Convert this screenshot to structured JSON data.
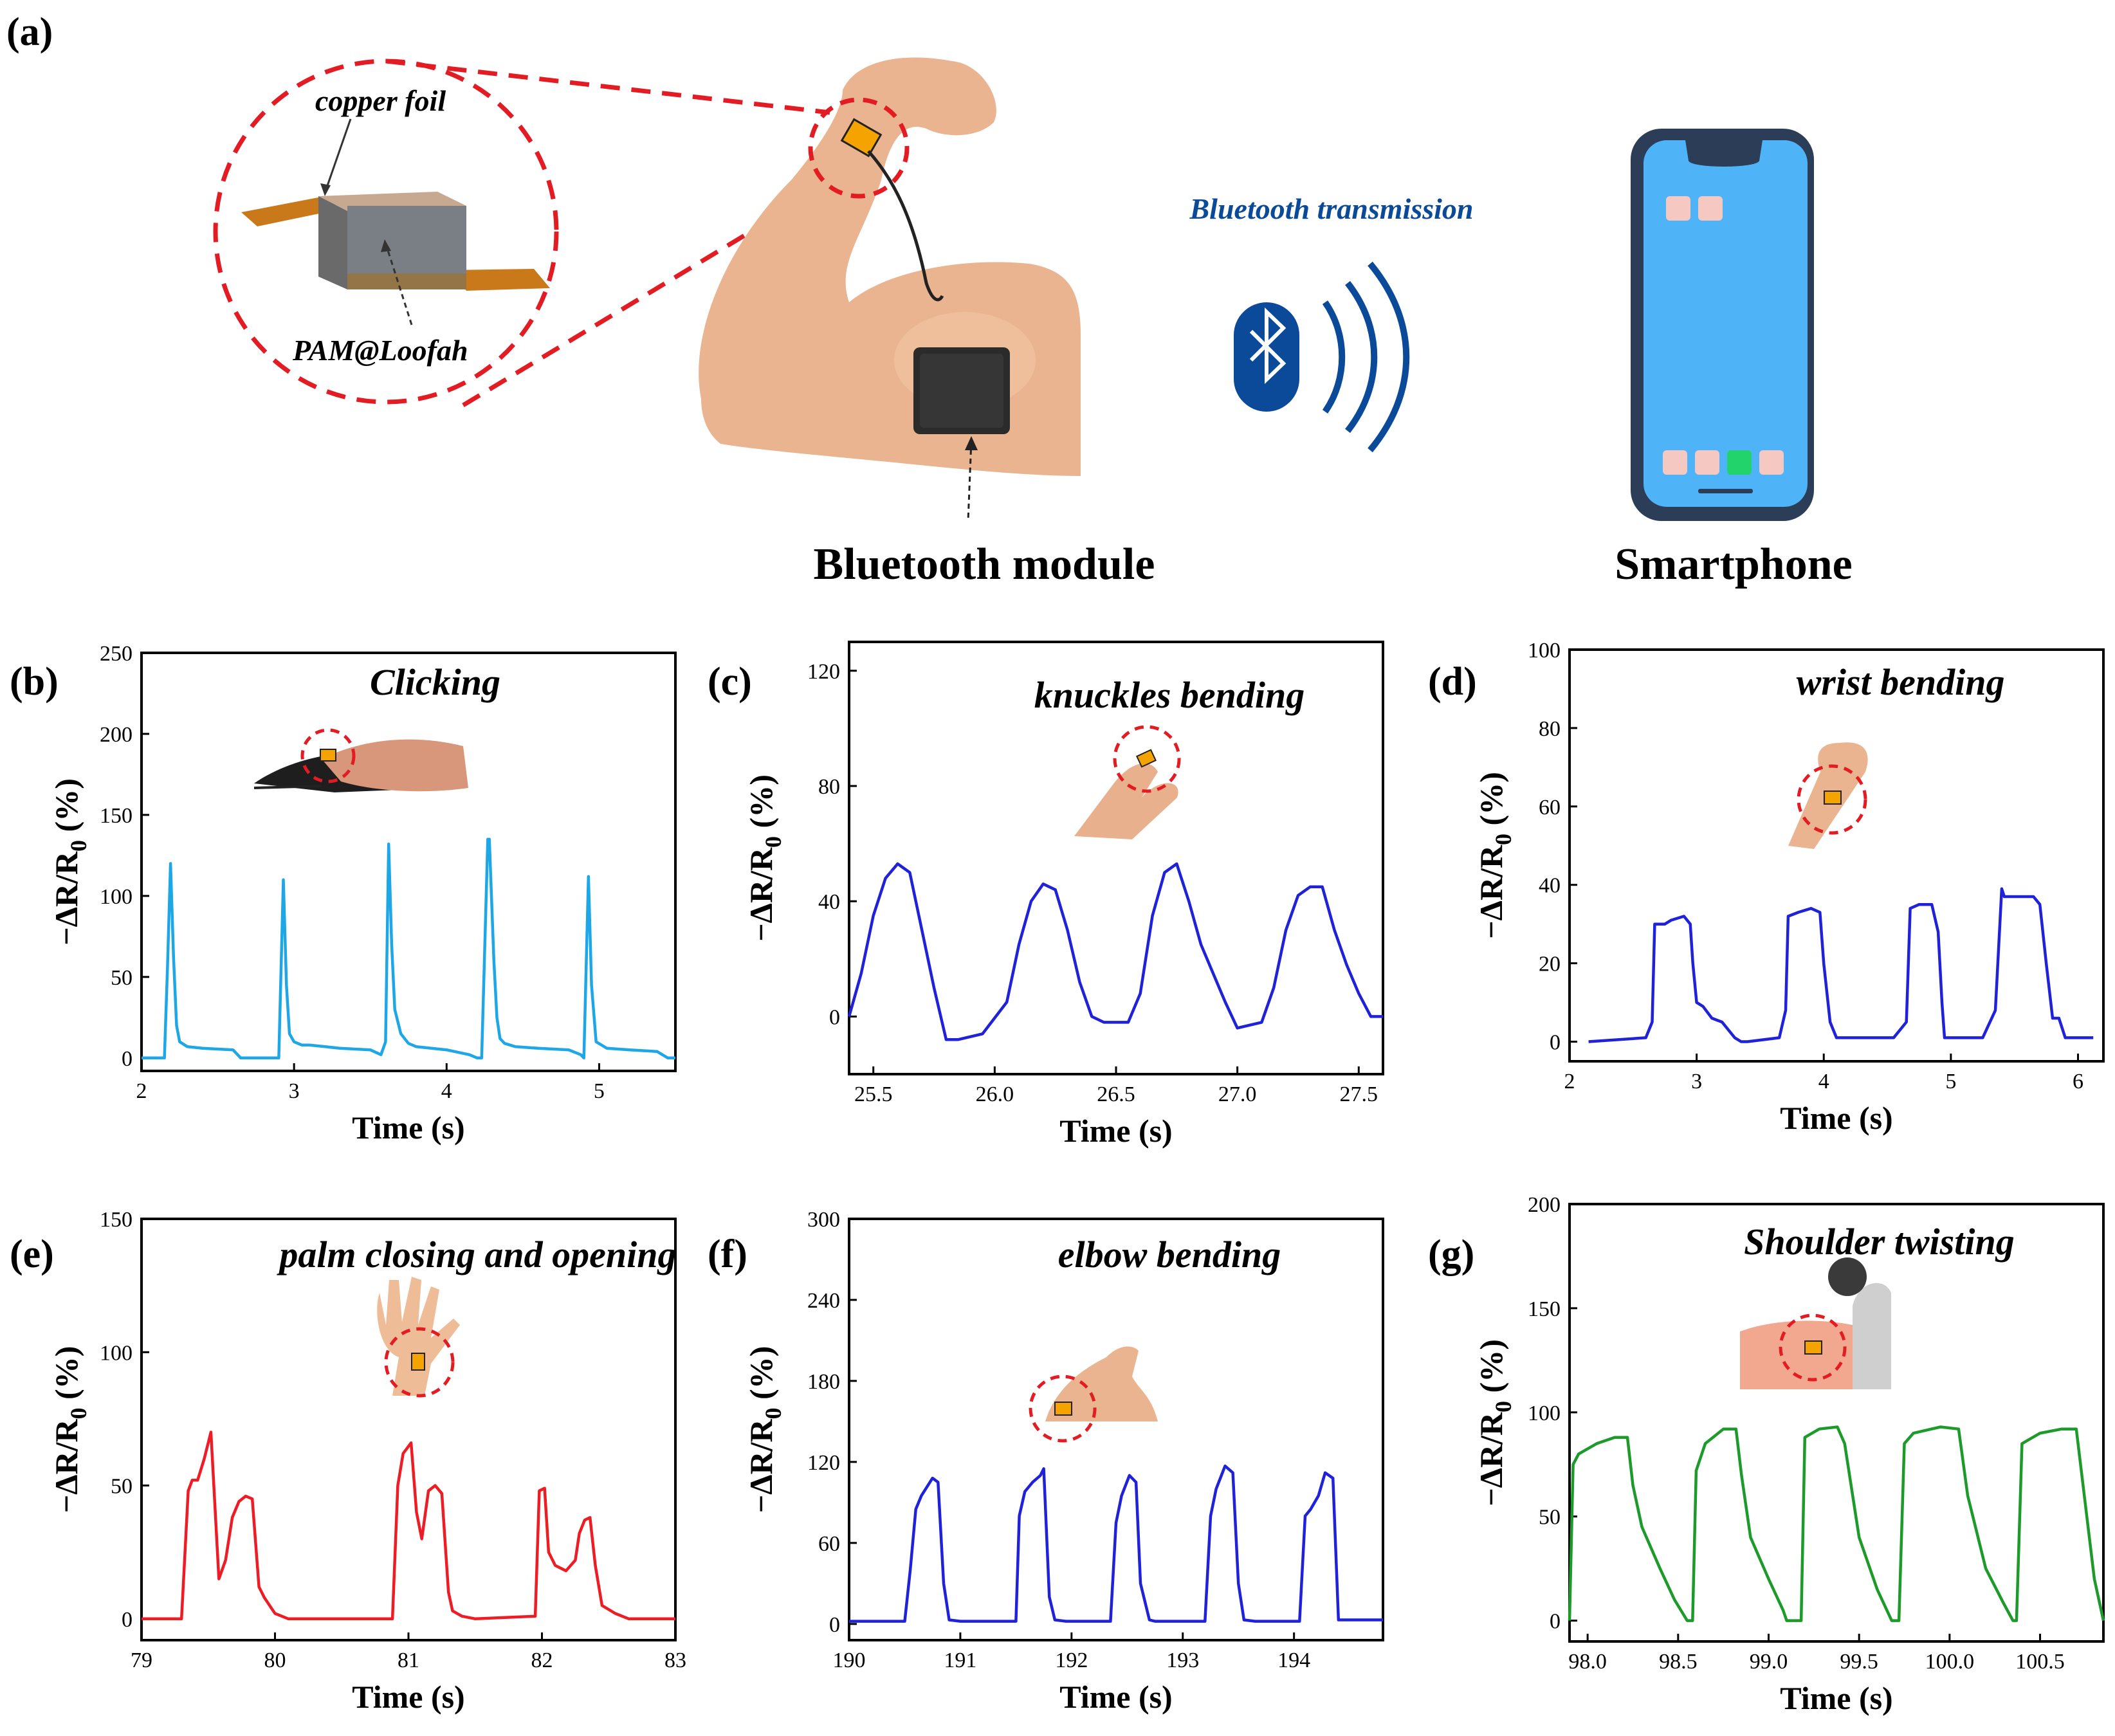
{
  "panel_a": {
    "letter": "(a)",
    "callout_top": "copper foil",
    "callout_bottom": "PAM@Loofah",
    "bluetooth_label": "Bluetooth transmission",
    "module_label": "Bluetooth module",
    "phone_label": "Smartphone"
  },
  "colors": {
    "cyan": "#1ea7e6",
    "blue": "#1f22d9",
    "red": "#ee1c24",
    "green": "#1c9a2a",
    "bluetooth": "#0b4a98",
    "dashed": "#e31b23",
    "phone_screen": "#4fb3f7"
  },
  "chart_data": [
    {
      "id": "b",
      "letter": "(b)",
      "type": "line",
      "title": "Clicking",
      "xlabel": "Time (s)",
      "ylabel_main": "−ΔR/R",
      "ylabel_sub": "0",
      "ylabel_unit": " (%)",
      "xlim": [
        2,
        5.5
      ],
      "ylim": [
        -8,
        250
      ],
      "xticks": [
        2,
        3,
        4,
        5
      ],
      "xtick_labels": [
        "2",
        "3",
        "4",
        "5"
      ],
      "yticks": [
        0,
        50,
        100,
        150,
        200,
        250
      ],
      "ytick_labels": [
        "0",
        "50",
        "100",
        "150",
        "200",
        "250"
      ],
      "color": "#1ea7e6",
      "x": [
        2.0,
        2.15,
        2.17,
        2.19,
        2.21,
        2.23,
        2.25,
        2.3,
        2.4,
        2.6,
        2.65,
        2.68,
        2.9,
        2.93,
        2.95,
        2.97,
        3.0,
        3.05,
        3.1,
        3.3,
        3.5,
        3.57,
        3.6,
        3.62,
        3.64,
        3.66,
        3.7,
        3.75,
        3.8,
        4.0,
        4.15,
        4.2,
        4.23,
        4.27,
        4.28,
        4.31,
        4.33,
        4.35,
        4.38,
        4.45,
        4.6,
        4.8,
        4.88,
        4.9,
        4.93,
        4.95,
        4.98,
        5.05,
        5.2,
        5.38,
        5.45,
        5.5
      ],
      "y": [
        0,
        0,
        55,
        120,
        62,
        20,
        10,
        7,
        6,
        5,
        0,
        0,
        0,
        110,
        45,
        15,
        10,
        8,
        8,
        6,
        5,
        2,
        10,
        132,
        70,
        30,
        15,
        9,
        7,
        5,
        2,
        0,
        0,
        135,
        135,
        60,
        25,
        12,
        9,
        7,
        6,
        5,
        2,
        0,
        112,
        45,
        10,
        6,
        5,
        4,
        0,
        0
      ]
    },
    {
      "id": "c",
      "letter": "(c)",
      "type": "line",
      "title": "knuckles bending",
      "xlabel": "Time (s)",
      "ylabel_main": "−ΔR/R",
      "ylabel_sub": "0",
      "ylabel_unit": " (%)",
      "xlim": [
        25.4,
        27.6
      ],
      "ylim": [
        -20,
        130
      ],
      "xticks": [
        25.5,
        26.0,
        26.5,
        27.0,
        27.5
      ],
      "xtick_labels": [
        "25.5",
        "26.0",
        "26.5",
        "27.0",
        "27.5"
      ],
      "yticks": [
        0,
        40,
        80,
        120
      ],
      "ytick_labels": [
        "0",
        "40",
        "80",
        "120"
      ],
      "color": "#1f22d9",
      "x": [
        25.4,
        25.45,
        25.5,
        25.55,
        25.6,
        25.65,
        25.7,
        25.75,
        25.8,
        25.85,
        25.95,
        26.05,
        26.1,
        26.15,
        26.2,
        26.25,
        26.3,
        26.35,
        26.4,
        26.45,
        26.55,
        26.6,
        26.65,
        26.7,
        26.75,
        26.8,
        26.85,
        26.9,
        26.95,
        27.0,
        27.1,
        27.15,
        27.2,
        27.25,
        27.3,
        27.35,
        27.4,
        27.45,
        27.5,
        27.55,
        27.6
      ],
      "y": [
        0,
        15,
        35,
        48,
        53,
        50,
        30,
        10,
        -8,
        -8,
        -6,
        5,
        25,
        40,
        46,
        44,
        30,
        12,
        0,
        -2,
        -2,
        8,
        35,
        50,
        53,
        40,
        25,
        15,
        5,
        -4,
        -2,
        10,
        30,
        42,
        45,
        45,
        30,
        18,
        8,
        0,
        0
      ]
    },
    {
      "id": "d",
      "letter": "(d)",
      "type": "line",
      "title": "wrist bending",
      "xlabel": "Time (s)",
      "ylabel_main": "−ΔR/R",
      "ylabel_sub": "0",
      "ylabel_unit": " (%)",
      "xlim": [
        2,
        6.2
      ],
      "ylim": [
        -5,
        100
      ],
      "xticks": [
        2,
        3,
        4,
        5,
        6
      ],
      "xtick_labels": [
        "2",
        "3",
        "4",
        "5",
        "6"
      ],
      "yticks": [
        0,
        20,
        40,
        60,
        80,
        100
      ],
      "ytick_labels": [
        "0",
        "20",
        "40",
        "60",
        "80",
        "100"
      ],
      "color": "#1f22d9",
      "x": [
        2.15,
        2.6,
        2.65,
        2.67,
        2.75,
        2.8,
        2.9,
        2.95,
        2.97,
        3.0,
        3.05,
        3.12,
        3.2,
        3.3,
        3.35,
        3.4,
        3.65,
        3.7,
        3.72,
        3.8,
        3.9,
        3.97,
        4.0,
        4.05,
        4.1,
        4.55,
        4.65,
        4.68,
        4.75,
        4.85,
        4.9,
        4.93,
        4.95,
        5.25,
        5.35,
        5.4,
        5.42,
        5.5,
        5.65,
        5.7,
        5.75,
        5.8,
        5.85,
        5.9,
        6.0,
        6.05,
        6.12
      ],
      "y": [
        0,
        1,
        5,
        30,
        30,
        31,
        32,
        30,
        20,
        10,
        9,
        6,
        5,
        1,
        0,
        0,
        1,
        8,
        32,
        33,
        34,
        33,
        20,
        5,
        1,
        1,
        5,
        34,
        35,
        35,
        28,
        10,
        1,
        1,
        8,
        39,
        37,
        37,
        37,
        35,
        20,
        6,
        6,
        1,
        1,
        1,
        1
      ]
    },
    {
      "id": "e",
      "letter": "(e)",
      "type": "line",
      "title": "palm closing and opening",
      "xlabel": "Time (s)",
      "ylabel_main": "−ΔR/R",
      "ylabel_sub": "0",
      "ylabel_unit": " (%)",
      "xlim": [
        79,
        83
      ],
      "ylim": [
        -8,
        150
      ],
      "xticks": [
        79,
        80,
        81,
        82,
        83
      ],
      "xtick_labels": [
        "79",
        "80",
        "81",
        "82",
        "83"
      ],
      "yticks": [
        0,
        50,
        100,
        150
      ],
      "ytick_labels": [
        "0",
        "50",
        "100",
        "150"
      ],
      "color": "#ee1c24",
      "x": [
        79.0,
        79.3,
        79.35,
        79.38,
        79.42,
        79.47,
        79.52,
        79.58,
        79.63,
        79.68,
        79.73,
        79.78,
        79.83,
        79.88,
        79.92,
        80.0,
        80.1,
        80.88,
        80.92,
        80.96,
        81.02,
        81.06,
        81.1,
        81.15,
        81.2,
        81.25,
        81.3,
        81.33,
        81.4,
        81.5,
        81.95,
        81.98,
        82.02,
        82.05,
        82.1,
        82.18,
        82.25,
        82.28,
        82.32,
        82.36,
        82.4,
        82.45,
        82.55,
        82.65,
        83.0
      ],
      "y": [
        0,
        0,
        48,
        52,
        52,
        60,
        70,
        15,
        22,
        38,
        44,
        46,
        45,
        12,
        8,
        2,
        0,
        0,
        50,
        62,
        66,
        40,
        30,
        48,
        50,
        47,
        10,
        3,
        1,
        0,
        1,
        48,
        49,
        25,
        20,
        18,
        22,
        32,
        37,
        38,
        20,
        5,
        2,
        0,
        0
      ]
    },
    {
      "id": "f",
      "letter": "(f)",
      "type": "line",
      "title": "elbow bending",
      "xlabel": "Time (s)",
      "ylabel_main": "−ΔR/R",
      "ylabel_sub": "0",
      "ylabel_unit": " (%)",
      "xlim": [
        190,
        194.8
      ],
      "ylim": [
        -12,
        300
      ],
      "xticks": [
        190,
        191,
        192,
        193,
        194
      ],
      "xtick_labels": [
        "190",
        "191",
        "192",
        "193",
        "194"
      ],
      "yticks": [
        0,
        60,
        120,
        180,
        240,
        300
      ],
      "ytick_labels": [
        "0",
        "60",
        "120",
        "180",
        "240",
        "300"
      ],
      "color": "#1f22d9",
      "x": [
        190.0,
        190.5,
        190.55,
        190.6,
        190.65,
        190.75,
        190.8,
        190.85,
        190.9,
        191.0,
        191.5,
        191.53,
        191.58,
        191.65,
        191.72,
        191.75,
        191.8,
        191.85,
        191.95,
        192.35,
        192.4,
        192.45,
        192.52,
        192.58,
        192.62,
        192.7,
        192.75,
        193.2,
        193.25,
        193.3,
        193.38,
        193.45,
        193.5,
        193.55,
        193.65,
        194.05,
        194.1,
        194.15,
        194.22,
        194.28,
        194.35,
        194.4,
        194.8
      ],
      "y": [
        2,
        2,
        40,
        85,
        95,
        108,
        105,
        30,
        3,
        2,
        2,
        80,
        98,
        105,
        110,
        115,
        20,
        3,
        2,
        2,
        75,
        95,
        110,
        105,
        30,
        3,
        2,
        2,
        80,
        100,
        117,
        112,
        30,
        3,
        2,
        2,
        80,
        85,
        95,
        112,
        108,
        3,
        3
      ]
    },
    {
      "id": "g",
      "letter": "(g)",
      "type": "line",
      "title": "Shoulder twisting",
      "xlabel": "Time (s)",
      "ylabel_main": "−ΔR/R",
      "ylabel_sub": "0",
      "ylabel_unit": " (%)",
      "xlim": [
        97.9,
        100.85
      ],
      "ylim": [
        -10,
        200
      ],
      "xticks": [
        98.0,
        98.5,
        99.0,
        99.5,
        100.0,
        100.5
      ],
      "xtick_labels": [
        "98.0",
        "98.5",
        "99.0",
        "99.5",
        "100.0",
        "100.5"
      ],
      "yticks": [
        0,
        50,
        100,
        150,
        200
      ],
      "ytick_labels": [
        "0",
        "50",
        "100",
        "150",
        "200"
      ],
      "color": "#1c9a2a",
      "x": [
        97.9,
        97.92,
        97.95,
        98.05,
        98.15,
        98.22,
        98.25,
        98.3,
        98.4,
        98.48,
        98.55,
        98.58,
        98.6,
        98.65,
        98.75,
        98.82,
        98.85,
        98.9,
        99.0,
        99.08,
        99.1,
        99.15,
        99.18,
        99.2,
        99.28,
        99.38,
        99.42,
        99.5,
        99.6,
        99.68,
        99.72,
        99.75,
        99.8,
        99.9,
        99.95,
        100.05,
        100.1,
        100.2,
        100.3,
        100.35,
        100.37,
        100.4,
        100.5,
        100.62,
        100.7,
        100.8,
        100.85
      ],
      "y": [
        0,
        75,
        80,
        85,
        88,
        88,
        65,
        45,
        25,
        10,
        0,
        0,
        72,
        85,
        92,
        92,
        70,
        40,
        20,
        5,
        0,
        0,
        0,
        88,
        92,
        93,
        85,
        40,
        15,
        0,
        0,
        85,
        90,
        92,
        93,
        92,
        60,
        25,
        8,
        0,
        0,
        85,
        90,
        92,
        92,
        20,
        0
      ]
    }
  ]
}
